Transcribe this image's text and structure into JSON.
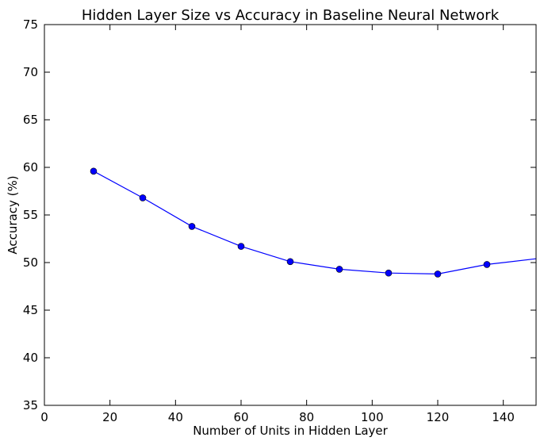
{
  "chart_data": {
    "type": "line",
    "title": "Hidden Layer Size vs Accuracy in Baseline Neural Network",
    "xlabel": "Number of Units in Hidden Layer",
    "ylabel": "Accuracy (%)",
    "xlim": [
      0,
      150
    ],
    "ylim": [
      35,
      75
    ],
    "xticks": [
      0,
      20,
      40,
      60,
      80,
      100,
      120,
      140
    ],
    "yticks": [
      35,
      40,
      45,
      50,
      55,
      60,
      65,
      70,
      75
    ],
    "grid": false,
    "series": [
      {
        "color": "#0000ff",
        "marker": "circle",
        "x": [
          15,
          30,
          45,
          60,
          75,
          90,
          105,
          120,
          135,
          150
        ],
        "y": [
          59.6,
          56.8,
          53.8,
          51.7,
          50.1,
          49.3,
          48.9,
          48.8,
          49.8,
          50.4
        ],
        "markers_shown": [
          true,
          true,
          true,
          true,
          true,
          true,
          true,
          true,
          true,
          false
        ]
      }
    ]
  }
}
